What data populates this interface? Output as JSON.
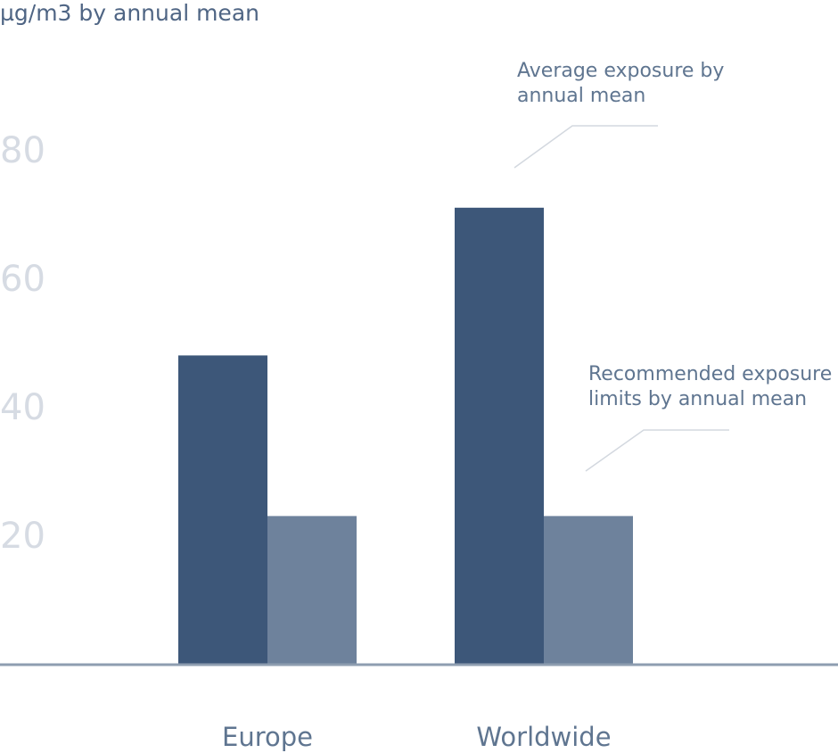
{
  "chart_data": {
    "type": "bar",
    "ylabel": "µg/m3 by annual mean",
    "categories": [
      "Europe",
      "Worldwide"
    ],
    "yticks": [
      "20",
      "40",
      "60",
      "80"
    ],
    "ylim": [
      0,
      84
    ],
    "series": [
      {
        "name": "Average exposure by annual mean",
        "values": [
          48,
          71
        ],
        "color": "#3d5779"
      },
      {
        "name": "Recommended exposure limits by annual mean",
        "values": [
          23,
          23
        ],
        "color": "#6e829c"
      }
    ],
    "annotations": [
      {
        "lines": [
          "Average exposure by",
          "annual mean"
        ]
      },
      {
        "lines": [
          "Recommended exposure",
          "limits by annual mean"
        ]
      }
    ],
    "grid": false,
    "legend": "none"
  }
}
